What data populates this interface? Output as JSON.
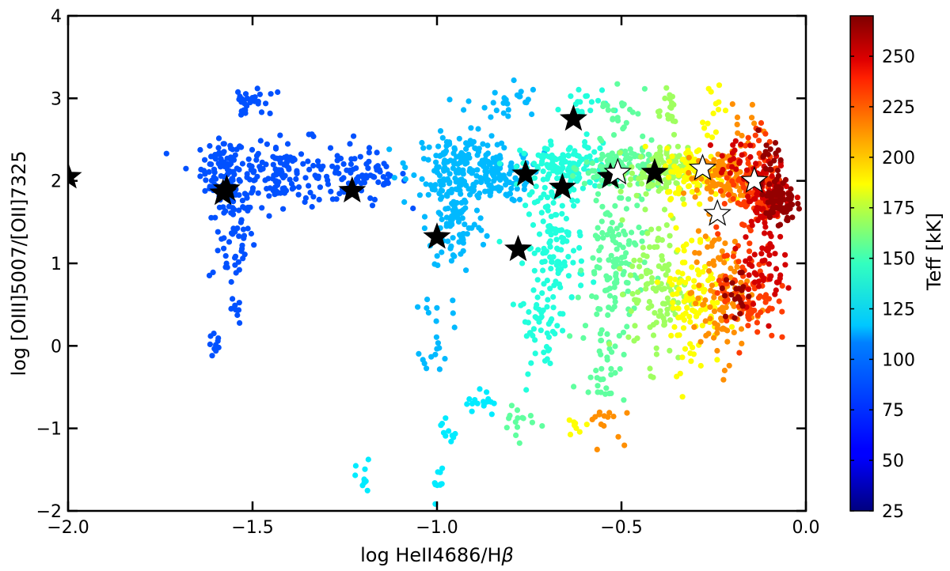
{
  "chart_data": {
    "type": "scatter",
    "xlabel_main": "log HeII4686/H",
    "xlabel_greek": "β",
    "ylabel": "log [OIII]5007/[OII]7325",
    "xlim": [
      -2.0,
      0.0
    ],
    "ylim": [
      -2,
      4
    ],
    "x_ticks": [
      -2.0,
      -1.5,
      -1.0,
      -0.5,
      0.0
    ],
    "x_tick_labels": [
      "−2.0",
      "−1.5",
      "−1.0",
      "−0.5",
      "0.0"
    ],
    "y_ticks": [
      -2,
      -1,
      0,
      1,
      2,
      3,
      4
    ],
    "y_tick_labels": [
      "−2",
      "−1",
      "0",
      "1",
      "2",
      "3",
      "4"
    ],
    "grid": false,
    "colorbar": {
      "label": "Teff [kK]",
      "range": [
        25,
        270
      ],
      "ticks": [
        25,
        50,
        75,
        100,
        125,
        150,
        175,
        200,
        225,
        250
      ],
      "tick_labels": [
        "25",
        "50",
        "75",
        "100",
        "125",
        "150",
        "175",
        "200",
        "225",
        "250"
      ],
      "colormap": "jet"
    },
    "model_clusters": [
      {
        "teff": 75,
        "cx": -1.58,
        "cy": 2.15,
        "sx": 0.03,
        "sy": 0.18,
        "n": 70
      },
      {
        "teff": 75,
        "cx": -1.56,
        "cy": 1.45,
        "sx": 0.03,
        "sy": 0.4,
        "n": 70
      },
      {
        "teff": 75,
        "cx": -1.42,
        "cy": 2.1,
        "sx": 0.09,
        "sy": 0.2,
        "n": 160
      },
      {
        "teff": 75,
        "cx": -1.2,
        "cy": 2.05,
        "sx": 0.06,
        "sy": 0.15,
        "n": 70
      },
      {
        "teff": 75,
        "cx": -1.48,
        "cy": 2.95,
        "sx": 0.03,
        "sy": 0.08,
        "n": 15
      },
      {
        "teff": 75,
        "cx": -1.53,
        "cy": 2.9,
        "sx": 0.01,
        "sy": 0.12,
        "n": 14
      },
      {
        "teff": 75,
        "cx": -1.6,
        "cy": 0.0,
        "sx": 0.01,
        "sy": 0.08,
        "n": 10
      },
      {
        "teff": 75,
        "cx": -1.55,
        "cy": 0.4,
        "sx": 0.01,
        "sy": 0.08,
        "n": 8
      },
      {
        "teff": 100,
        "cx": -0.93,
        "cy": 2.2,
        "sx": 0.07,
        "sy": 0.18,
        "n": 150
      },
      {
        "teff": 100,
        "cx": -0.95,
        "cy": 1.55,
        "sx": 0.04,
        "sy": 0.35,
        "n": 110
      },
      {
        "teff": 100,
        "cx": -0.82,
        "cy": 2.95,
        "sx": 0.05,
        "sy": 0.15,
        "n": 25
      },
      {
        "teff": 100,
        "cx": -1.0,
        "cy": 0.2,
        "sx": 0.02,
        "sy": 0.25,
        "n": 20
      },
      {
        "teff": 100,
        "cx": -0.85,
        "cy": 2.05,
        "sx": 0.05,
        "sy": 0.15,
        "n": 80
      },
      {
        "teff": 112,
        "cx": -0.88,
        "cy": -0.7,
        "sx": 0.02,
        "sy": 0.1,
        "n": 16
      },
      {
        "teff": 112,
        "cx": -0.97,
        "cy": -1.0,
        "sx": 0.01,
        "sy": 0.1,
        "n": 10
      },
      {
        "teff": 112,
        "cx": -1.0,
        "cy": -1.65,
        "sx": 0.01,
        "sy": 0.12,
        "n": 10
      },
      {
        "teff": 112,
        "cx": -1.2,
        "cy": -1.62,
        "sx": 0.01,
        "sy": 0.12,
        "n": 10
      },
      {
        "teff": 125,
        "cx": -0.65,
        "cy": 2.15,
        "sx": 0.06,
        "sy": 0.15,
        "n": 140
      },
      {
        "teff": 125,
        "cx": -0.68,
        "cy": 1.2,
        "sx": 0.04,
        "sy": 0.4,
        "n": 120
      },
      {
        "teff": 125,
        "cx": -0.72,
        "cy": 0.2,
        "sx": 0.03,
        "sy": 0.25,
        "n": 40
      },
      {
        "teff": 125,
        "cx": -0.6,
        "cy": 2.9,
        "sx": 0.03,
        "sy": 0.15,
        "n": 20
      },
      {
        "teff": 140,
        "cx": -0.5,
        "cy": 2.15,
        "sx": 0.05,
        "sy": 0.15,
        "n": 120
      },
      {
        "teff": 140,
        "cx": -0.52,
        "cy": 1.0,
        "sx": 0.04,
        "sy": 0.45,
        "n": 120
      },
      {
        "teff": 140,
        "cx": -0.55,
        "cy": -0.2,
        "sx": 0.03,
        "sy": 0.25,
        "n": 35
      },
      {
        "teff": 140,
        "cx": -0.5,
        "cy": 2.9,
        "sx": 0.03,
        "sy": 0.18,
        "n": 20
      },
      {
        "teff": 140,
        "cx": -0.78,
        "cy": -0.9,
        "sx": 0.03,
        "sy": 0.12,
        "n": 15
      },
      {
        "teff": 155,
        "cx": -0.4,
        "cy": 2.1,
        "sx": 0.04,
        "sy": 0.15,
        "n": 110
      },
      {
        "teff": 155,
        "cx": -0.4,
        "cy": 0.7,
        "sx": 0.04,
        "sy": 0.45,
        "n": 110
      },
      {
        "teff": 155,
        "cx": -0.38,
        "cy": 2.9,
        "sx": 0.02,
        "sy": 0.18,
        "n": 20
      },
      {
        "teff": 178,
        "cx": -0.3,
        "cy": 2.1,
        "sx": 0.04,
        "sy": 0.15,
        "n": 110
      },
      {
        "teff": 178,
        "cx": -0.31,
        "cy": 0.6,
        "sx": 0.04,
        "sy": 0.45,
        "n": 110
      },
      {
        "teff": 178,
        "cx": -0.26,
        "cy": 2.85,
        "sx": 0.02,
        "sy": 0.2,
        "n": 15
      },
      {
        "teff": 178,
        "cx": -0.62,
        "cy": -0.95,
        "sx": 0.01,
        "sy": 0.07,
        "n": 8
      },
      {
        "teff": 205,
        "cx": -0.22,
        "cy": 2.05,
        "sx": 0.04,
        "sy": 0.15,
        "n": 110
      },
      {
        "teff": 205,
        "cx": -0.23,
        "cy": 0.6,
        "sx": 0.04,
        "sy": 0.4,
        "n": 110
      },
      {
        "teff": 205,
        "cx": -0.56,
        "cy": -0.9,
        "sx": 0.03,
        "sy": 0.12,
        "n": 14
      },
      {
        "teff": 205,
        "cx": -0.18,
        "cy": 2.75,
        "sx": 0.02,
        "sy": 0.15,
        "n": 10
      },
      {
        "teff": 225,
        "cx": -0.14,
        "cy": 1.9,
        "sx": 0.04,
        "sy": 0.2,
        "n": 110
      },
      {
        "teff": 225,
        "cx": -0.16,
        "cy": 0.7,
        "sx": 0.04,
        "sy": 0.35,
        "n": 90
      },
      {
        "teff": 225,
        "cx": -0.12,
        "cy": 2.5,
        "sx": 0.02,
        "sy": 0.15,
        "n": 12
      },
      {
        "teff": 250,
        "cx": -0.1,
        "cy": 1.85,
        "sx": 0.03,
        "sy": 0.2,
        "n": 100
      },
      {
        "teff": 250,
        "cx": -0.12,
        "cy": 1.0,
        "sx": 0.03,
        "sy": 0.25,
        "n": 50
      },
      {
        "teff": 250,
        "cx": -0.2,
        "cy": 2.3,
        "sx": 0.02,
        "sy": 0.15,
        "n": 20
      },
      {
        "teff": 265,
        "cx": -0.07,
        "cy": 1.75,
        "sx": 0.02,
        "sy": 0.15,
        "n": 80
      },
      {
        "teff": 265,
        "cx": -0.1,
        "cy": 2.3,
        "sx": 0.02,
        "sy": 0.15,
        "n": 20
      },
      {
        "teff": 265,
        "cx": -0.19,
        "cy": 0.6,
        "sx": 0.02,
        "sy": 0.15,
        "n": 20
      }
    ],
    "black_stars": [
      {
        "x": -2.0,
        "y": 2.05
      },
      {
        "x": -1.58,
        "y": 1.85
      },
      {
        "x": -1.57,
        "y": 1.9
      },
      {
        "x": -1.23,
        "y": 1.88
      },
      {
        "x": -1.0,
        "y": 1.32
      },
      {
        "x": -0.78,
        "y": 1.17
      },
      {
        "x": -0.76,
        "y": 2.08
      },
      {
        "x": -0.66,
        "y": 1.92
      },
      {
        "x": -0.63,
        "y": 2.75
      },
      {
        "x": -0.53,
        "y": 2.05
      },
      {
        "x": -0.41,
        "y": 2.1
      }
    ],
    "white_stars": [
      {
        "x": -0.51,
        "y": 2.1
      },
      {
        "x": -0.28,
        "y": 2.15
      },
      {
        "x": -0.24,
        "y": 1.6
      },
      {
        "x": -0.14,
        "y": 2.0
      }
    ]
  }
}
